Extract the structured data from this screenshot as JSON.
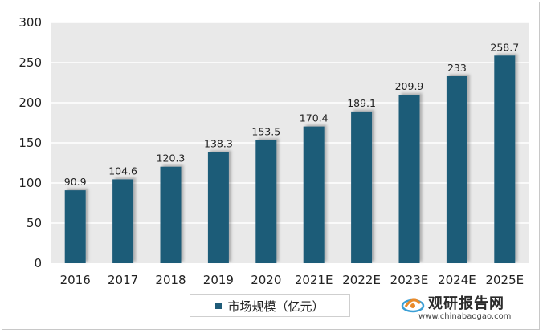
{
  "chart_data": {
    "type": "bar",
    "categories": [
      "2016",
      "2017",
      "2018",
      "2019",
      "2020",
      "2021E",
      "2022E",
      "2023E",
      "2024E",
      "2025E"
    ],
    "series": [
      {
        "name": "市场规模（亿元）",
        "values": [
          90.9,
          104.6,
          120.3,
          138.3,
          153.5,
          170.4,
          189.1,
          209.9,
          233,
          258.7
        ],
        "labels": [
          "90.9",
          "104.6",
          "120.3",
          "138.3",
          "153.5",
          "170.4",
          "189.1",
          "209.9",
          "233",
          "258.7"
        ]
      }
    ],
    "y_ticks": [
      "0",
      "50",
      "100",
      "150",
      "200",
      "250",
      "300"
    ],
    "ylim": [
      0,
      300
    ],
    "grid": true,
    "legend_position": "bottom",
    "colors": {
      "bar": "#1f5b78",
      "plot_bg": "#e9e9e9",
      "grid": "#ffffff"
    }
  },
  "legend": {
    "label": "市场规模（亿元）"
  },
  "watermark": {
    "name_cn": "观研报告网",
    "url": "www.chinabaogao.com"
  }
}
